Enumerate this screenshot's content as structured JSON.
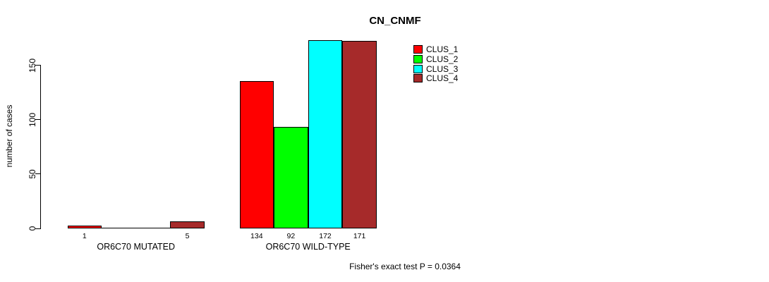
{
  "chart_data": {
    "type": "bar",
    "title": "CN_CNMF",
    "ylabel": "number of cases",
    "yticks": [
      0,
      50,
      100,
      150
    ],
    "ylim": [
      0,
      172
    ],
    "grid": false,
    "legend_position": "top-right",
    "series": [
      {
        "name": "CLUS_1",
        "color": "#ff0000"
      },
      {
        "name": "CLUS_2",
        "color": "#00ff00"
      },
      {
        "name": "CLUS_3",
        "color": "#00ffff"
      },
      {
        "name": "CLUS_4",
        "color": "#a62a2a"
      }
    ],
    "groups": [
      {
        "label": "OR6C70 MUTATED",
        "values": [
          1,
          0,
          0,
          5
        ],
        "bar_labels": [
          "1",
          "",
          "",
          "5"
        ]
      },
      {
        "label": "OR6C70 WILD-TYPE",
        "values": [
          134,
          92,
          172,
          171
        ],
        "bar_labels": [
          "134",
          "92",
          "172",
          "171"
        ]
      }
    ],
    "annotation": "Fisher's exact test P = 0.0364"
  }
}
